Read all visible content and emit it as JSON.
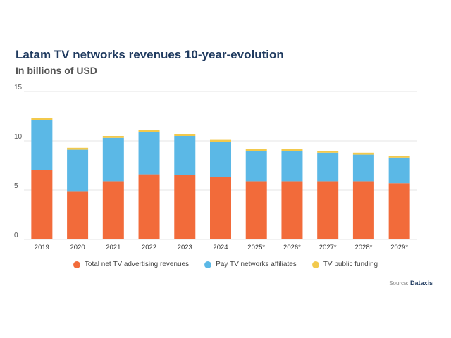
{
  "title": "Latam TV networks revenues 10-year-evolution",
  "subtitle": "In billions of USD",
  "source_prefix": "Source:",
  "source_brand": "Dataxis",
  "colors": {
    "advertising": "#f26b3a",
    "pay_tv": "#5bb8e6",
    "public_funding": "#f2c94c",
    "grid": "#e6e6e6",
    "axis_text": "#555555"
  },
  "chart_data": {
    "type": "bar",
    "stacked": true,
    "title": "Latam TV networks revenues 10-year-evolution",
    "subtitle": "In billions of USD",
    "categories": [
      "2019",
      "2020",
      "2021",
      "2022",
      "2023",
      "2024",
      "2025*",
      "2026*",
      "2027*",
      "2028*",
      "2029*"
    ],
    "ylim": [
      0,
      15
    ],
    "yticks": [
      0,
      5,
      10,
      15
    ],
    "grid": true,
    "legend_position": "bottom",
    "series": [
      {
        "name": "Total net TV advertising revenues",
        "color": "#f26b3a",
        "values": [
          7.0,
          4.9,
          5.9,
          6.6,
          6.5,
          6.3,
          5.9,
          5.9,
          5.9,
          5.9,
          5.7
        ]
      },
      {
        "name": "Pay TV networks affiliates",
        "color": "#5bb8e6",
        "values": [
          5.1,
          4.2,
          4.4,
          4.3,
          4.0,
          3.6,
          3.1,
          3.1,
          2.9,
          2.7,
          2.6
        ]
      },
      {
        "name": "TV public funding",
        "color": "#f2c94c",
        "values": [
          0.2,
          0.2,
          0.2,
          0.2,
          0.2,
          0.2,
          0.2,
          0.2,
          0.2,
          0.2,
          0.2
        ]
      }
    ]
  }
}
